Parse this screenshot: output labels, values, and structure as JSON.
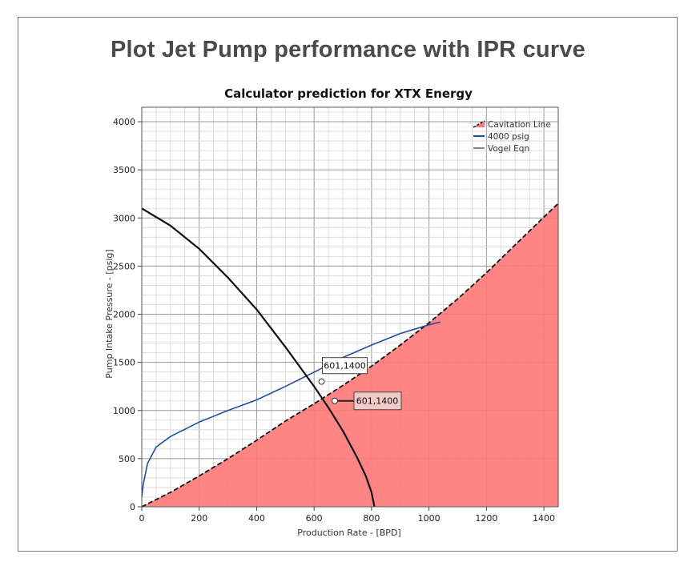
{
  "page": {
    "heading": "Plot Jet Pump performance with IPR curve"
  },
  "chart_data": {
    "type": "line",
    "title": "Calculator prediction for XTX Energy",
    "xlabel": "Production Rate -  [BPD]",
    "ylabel": "Pump Intake Pressure -  [psig]",
    "xlim": [
      0,
      1450
    ],
    "ylim": [
      0,
      4150
    ],
    "xticks": [
      0,
      200,
      400,
      600,
      800,
      1000,
      1200,
      1400
    ],
    "yticks": [
      0,
      500,
      1000,
      1500,
      2000,
      2500,
      3000,
      3500,
      4000
    ],
    "grid": true,
    "legend_position": "top-right",
    "series": [
      {
        "name": "Cavitation Line",
        "color": "#ff7b7b",
        "style": "filled-area-dashed-edge",
        "x": [
          0,
          100,
          200,
          300,
          400,
          500,
          600,
          700,
          800,
          900,
          1000,
          1100,
          1200,
          1300,
          1400,
          1450
        ],
        "y": [
          0,
          150,
          320,
          500,
          690,
          890,
          1070,
          1260,
          1460,
          1680,
          1910,
          2160,
          2430,
          2720,
          3010,
          3150
        ]
      },
      {
        "name": "4000 psig",
        "color": "#1f4e9c",
        "style": "line",
        "x": [
          0,
          5,
          20,
          50,
          100,
          200,
          300,
          400,
          500,
          601,
          700,
          800,
          900,
          1000,
          1040
        ],
        "y": [
          100,
          230,
          450,
          620,
          730,
          880,
          1000,
          1110,
          1250,
          1400,
          1550,
          1680,
          1800,
          1890,
          1920
        ]
      },
      {
        "name": "Vogel Eqn",
        "color": "#111111",
        "style": "line",
        "x": [
          0,
          100,
          200,
          300,
          400,
          500,
          600,
          650,
          700,
          750,
          780,
          800,
          810
        ],
        "y": [
          3100,
          2920,
          2680,
          2380,
          2050,
          1660,
          1250,
          1030,
          790,
          510,
          320,
          150,
          0
        ]
      }
    ],
    "annotations": [
      {
        "label": "601,1400",
        "x": 626,
        "y": 1300,
        "style": "white"
      },
      {
        "label": "601,1400",
        "x": 672,
        "y": 1100,
        "style": "pink"
      }
    ]
  }
}
